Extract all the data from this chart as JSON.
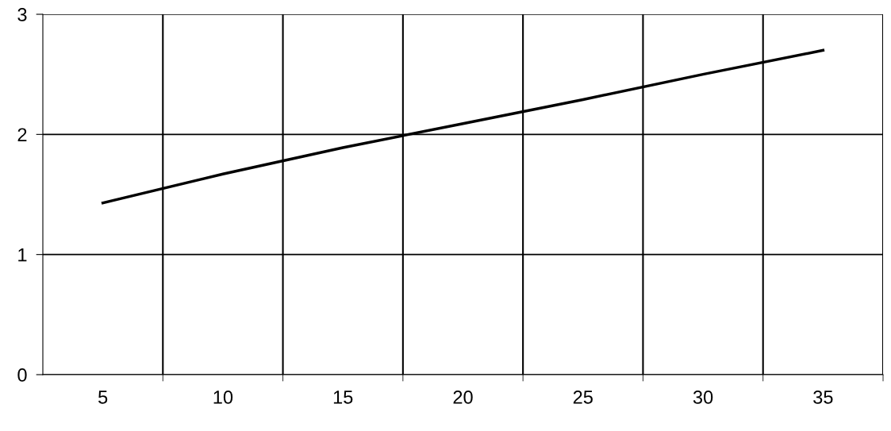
{
  "chart_data": {
    "type": "line",
    "categories": [
      "5",
      "10",
      "15",
      "20",
      "25",
      "30",
      "35"
    ],
    "series": [
      {
        "color": "#000000",
        "values": [
          1.43,
          1.67,
          1.89,
          2.09,
          2.29,
          2.5,
          2.7
        ]
      }
    ],
    "ylim": [
      0,
      3
    ],
    "yticks": [
      0,
      1,
      2,
      3
    ],
    "grid": true,
    "marker": "none",
    "line_style": "solid"
  }
}
